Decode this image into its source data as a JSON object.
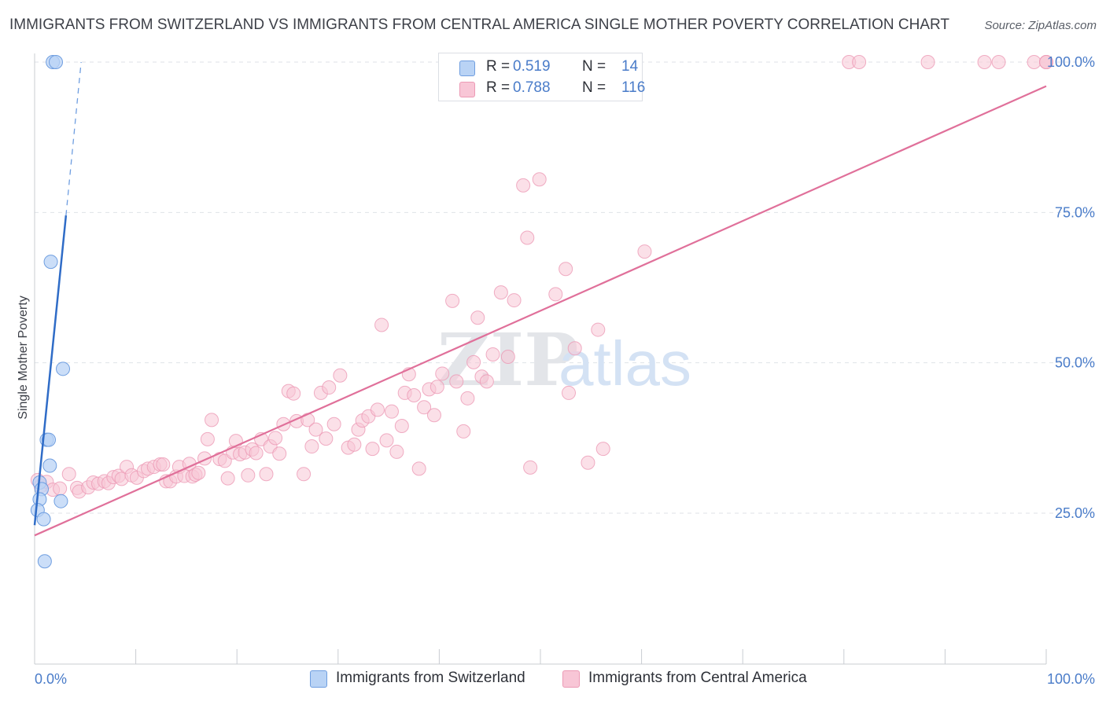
{
  "title": "IMMIGRANTS FROM SWITZERLAND VS IMMIGRANTS FROM CENTRAL AMERICA SINGLE MOTHER POVERTY CORRELATION CHART",
  "source": "Source: ZipAtlas.com",
  "legend": {
    "r_label": "R =",
    "n_label": "N =",
    "switzerland_r": "0.519",
    "switzerland_n": "14",
    "central_america_r": "0.788",
    "central_america_n": "116"
  },
  "colors": {
    "switzerland_fill": "#b9d3f5",
    "switzerland_stroke": "#6f9ee0",
    "switzerland_line": "#2f6cc7",
    "central_america_fill": "#f8c6d6",
    "central_america_stroke": "#ec9ab5",
    "central_america_line": "#e0709a",
    "tick_text": "#4a7cc9"
  },
  "chart_data": {
    "type": "scatter",
    "title": "IMMIGRANTS FROM SWITZERLAND VS IMMIGRANTS FROM CENTRAL AMERICA SINGLE MOTHER POVERTY CORRELATION CHART",
    "xlabel": "",
    "ylabel": "Single Mother Poverty",
    "xlim": [
      0,
      100
    ],
    "ylim": [
      0,
      104
    ],
    "x_tick_labels": [
      "0.0%",
      "100.0%"
    ],
    "y_ticks": [
      25,
      50,
      75,
      100
    ],
    "y_tick_labels": [
      "25.0%",
      "50.0%",
      "75.0%",
      "100.0%"
    ],
    "grid": true,
    "watermark": "ZIPatlas",
    "series": [
      {
        "name": "Immigrants from Switzerland",
        "r": 0.519,
        "n": 14,
        "trend": {
          "x0": 0.0,
          "y0": 23.0,
          "x1": 3.1,
          "y1": 74.5,
          "dashed_to_x": 4.6,
          "dashed_to_y": 100.0
        },
        "points": [
          [
            1.8,
            100.0
          ],
          [
            2.1,
            100.0
          ],
          [
            1.6,
            66.8
          ],
          [
            2.8,
            49.0
          ],
          [
            1.2,
            37.2
          ],
          [
            1.4,
            37.2
          ],
          [
            1.5,
            32.9
          ],
          [
            0.5,
            30.1
          ],
          [
            0.7,
            29.0
          ],
          [
            0.5,
            27.3
          ],
          [
            0.3,
            25.5
          ],
          [
            2.6,
            27.0
          ],
          [
            0.9,
            24.0
          ],
          [
            1.0,
            17.0
          ]
        ]
      },
      {
        "name": "Immigrants from Central America",
        "r": 0.788,
        "n": 116,
        "trend": {
          "x0": 0.0,
          "y0": 21.3,
          "x1": 100.0,
          "y1": 96.0
        },
        "points": [
          [
            0.3,
            30.5
          ],
          [
            0.6,
            29.5
          ],
          [
            1.2,
            30.2
          ],
          [
            1.8,
            28.9
          ],
          [
            2.5,
            29.1
          ],
          [
            3.4,
            31.5
          ],
          [
            4.2,
            29.2
          ],
          [
            4.4,
            28.6
          ],
          [
            5.3,
            29.3
          ],
          [
            5.8,
            30.1
          ],
          [
            6.3,
            29.9
          ],
          [
            6.9,
            30.3
          ],
          [
            7.3,
            30.0
          ],
          [
            7.8,
            31.0
          ],
          [
            8.3,
            31.2
          ],
          [
            8.6,
            30.7
          ],
          [
            9.1,
            32.7
          ],
          [
            9.6,
            31.3
          ],
          [
            10.1,
            30.9
          ],
          [
            10.8,
            32.0
          ],
          [
            11.2,
            32.4
          ],
          [
            11.8,
            32.7
          ],
          [
            12.4,
            33.1
          ],
          [
            12.7,
            33.1
          ],
          [
            13.0,
            30.3
          ],
          [
            13.4,
            30.3
          ],
          [
            14.0,
            31.1
          ],
          [
            14.3,
            32.7
          ],
          [
            14.8,
            31.2
          ],
          [
            15.3,
            33.2
          ],
          [
            15.6,
            31.1
          ],
          [
            15.9,
            31.4
          ],
          [
            16.2,
            31.7
          ],
          [
            16.8,
            34.1
          ],
          [
            17.1,
            37.3
          ],
          [
            17.5,
            40.5
          ],
          [
            18.3,
            34.0
          ],
          [
            18.8,
            33.7
          ],
          [
            19.1,
            30.8
          ],
          [
            19.6,
            35.1
          ],
          [
            19.9,
            37.0
          ],
          [
            20.3,
            34.8
          ],
          [
            20.8,
            35.1
          ],
          [
            21.1,
            31.3
          ],
          [
            21.5,
            35.6
          ],
          [
            21.9,
            35.0
          ],
          [
            22.4,
            37.3
          ],
          [
            22.9,
            31.5
          ],
          [
            23.3,
            36.1
          ],
          [
            23.8,
            37.5
          ],
          [
            24.2,
            34.9
          ],
          [
            24.6,
            39.8
          ],
          [
            25.1,
            45.3
          ],
          [
            25.6,
            44.9
          ],
          [
            25.9,
            40.3
          ],
          [
            26.6,
            31.5
          ],
          [
            27.0,
            40.5
          ],
          [
            27.4,
            36.1
          ],
          [
            27.8,
            38.9
          ],
          [
            28.3,
            45.0
          ],
          [
            28.8,
            37.4
          ],
          [
            29.1,
            45.9
          ],
          [
            29.6,
            39.8
          ],
          [
            30.2,
            47.9
          ],
          [
            31.0,
            35.9
          ],
          [
            31.6,
            36.4
          ],
          [
            32.0,
            38.9
          ],
          [
            32.4,
            40.4
          ],
          [
            33.0,
            41.1
          ],
          [
            33.4,
            35.7
          ],
          [
            33.9,
            42.2
          ],
          [
            34.3,
            56.3
          ],
          [
            34.8,
            37.1
          ],
          [
            35.3,
            41.9
          ],
          [
            35.8,
            35.2
          ],
          [
            36.3,
            39.5
          ],
          [
            36.6,
            45.0
          ],
          [
            37.0,
            48.1
          ],
          [
            37.5,
            44.6
          ],
          [
            38.0,
            32.4
          ],
          [
            38.5,
            42.6
          ],
          [
            39.0,
            45.6
          ],
          [
            39.5,
            41.3
          ],
          [
            39.8,
            46.0
          ],
          [
            40.3,
            48.2
          ],
          [
            41.3,
            60.3
          ],
          [
            41.7,
            46.9
          ],
          [
            42.4,
            38.6
          ],
          [
            42.8,
            44.1
          ],
          [
            43.4,
            50.1
          ],
          [
            43.8,
            57.5
          ],
          [
            44.2,
            47.7
          ],
          [
            44.7,
            46.9
          ],
          [
            45.3,
            51.4
          ],
          [
            46.1,
            61.7
          ],
          [
            46.8,
            51.0
          ],
          [
            47.4,
            60.4
          ],
          [
            48.3,
            79.5
          ],
          [
            48.7,
            70.8
          ],
          [
            49.0,
            32.6
          ],
          [
            49.9,
            80.5
          ],
          [
            51.5,
            61.4
          ],
          [
            52.5,
            65.6
          ],
          [
            52.8,
            45.0
          ],
          [
            53.4,
            52.4
          ],
          [
            54.7,
            33.4
          ],
          [
            55.7,
            55.5
          ],
          [
            56.2,
            35.7
          ],
          [
            60.3,
            68.5
          ],
          [
            80.5,
            100.0
          ],
          [
            81.5,
            100.0
          ],
          [
            88.3,
            100.0
          ],
          [
            93.9,
            100.0
          ],
          [
            95.3,
            100.0
          ],
          [
            98.8,
            100.0
          ],
          [
            100.0,
            100.0
          ],
          [
            100.0,
            100.0
          ],
          [
            100.0,
            100.0
          ]
        ]
      }
    ]
  },
  "bottom_legend": {
    "switzerland": "Immigrants from Switzerland",
    "central_america": "Immigrants from Central America"
  }
}
